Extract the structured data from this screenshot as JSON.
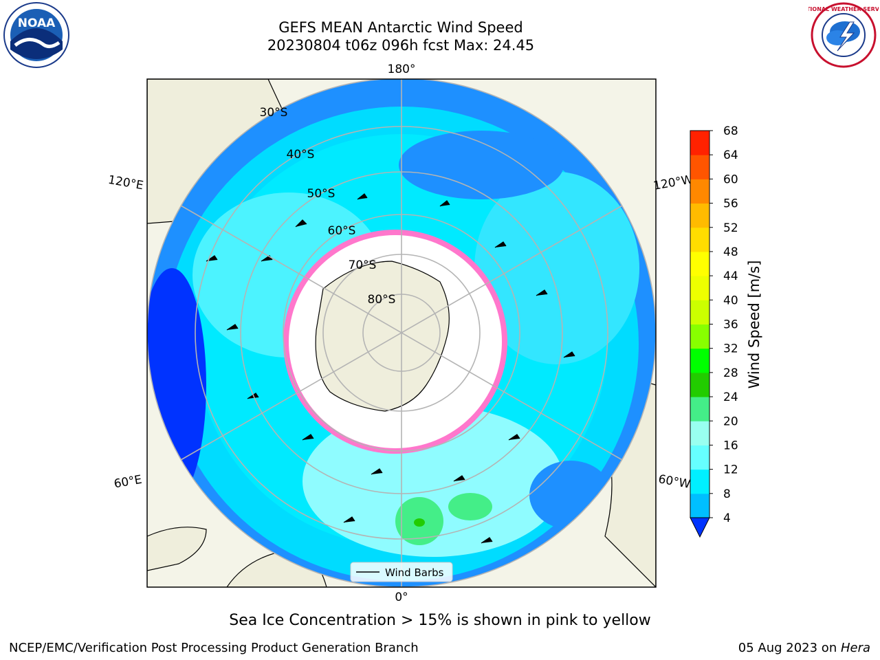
{
  "header": {
    "title_line1": "GEFS MEAN Antarctic Wind Speed",
    "title_line2": "20230804 t06z 096h fcst   Max: 24.45"
  },
  "logos": {
    "left_name": "NOAA",
    "right_name": "NATIONAL WEATHER SERVICE"
  },
  "map": {
    "projection": "south-polar-stereographic",
    "longitude_labels": [
      "180°",
      "120°E",
      "120°W",
      "60°E",
      "60°W",
      "0°"
    ],
    "latitude_labels": [
      "30°S",
      "40°S",
      "50°S",
      "60°S",
      "70°S",
      "80°S"
    ],
    "legend_label": "Wind Barbs"
  },
  "colorbar": {
    "label": "Wind Speed [m/s]",
    "ticks": [
      "4",
      "8",
      "12",
      "16",
      "20",
      "24",
      "28",
      "32",
      "36",
      "40",
      "44",
      "48",
      "52",
      "56",
      "60",
      "64",
      "68"
    ],
    "colors": [
      "#0033ff",
      "#00bfff",
      "#00f0ff",
      "#66ffff",
      "#99fff0",
      "#44ee88",
      "#22cc00",
      "#00ff00",
      "#88ff00",
      "#ccff00",
      "#eeff00",
      "#ffff00",
      "#ffdd00",
      "#ffbb00",
      "#ff8800",
      "#ff5500",
      "#ff2200",
      "#ff0000"
    ]
  },
  "footer": {
    "note": "Sea Ice Concentration > 15% is shown in pink to yellow",
    "left": "NCEP/EMC/Verification Post Processing Product Generation Branch",
    "right_prefix": "05 Aug 2023 on ",
    "right_host": "Hera"
  }
}
